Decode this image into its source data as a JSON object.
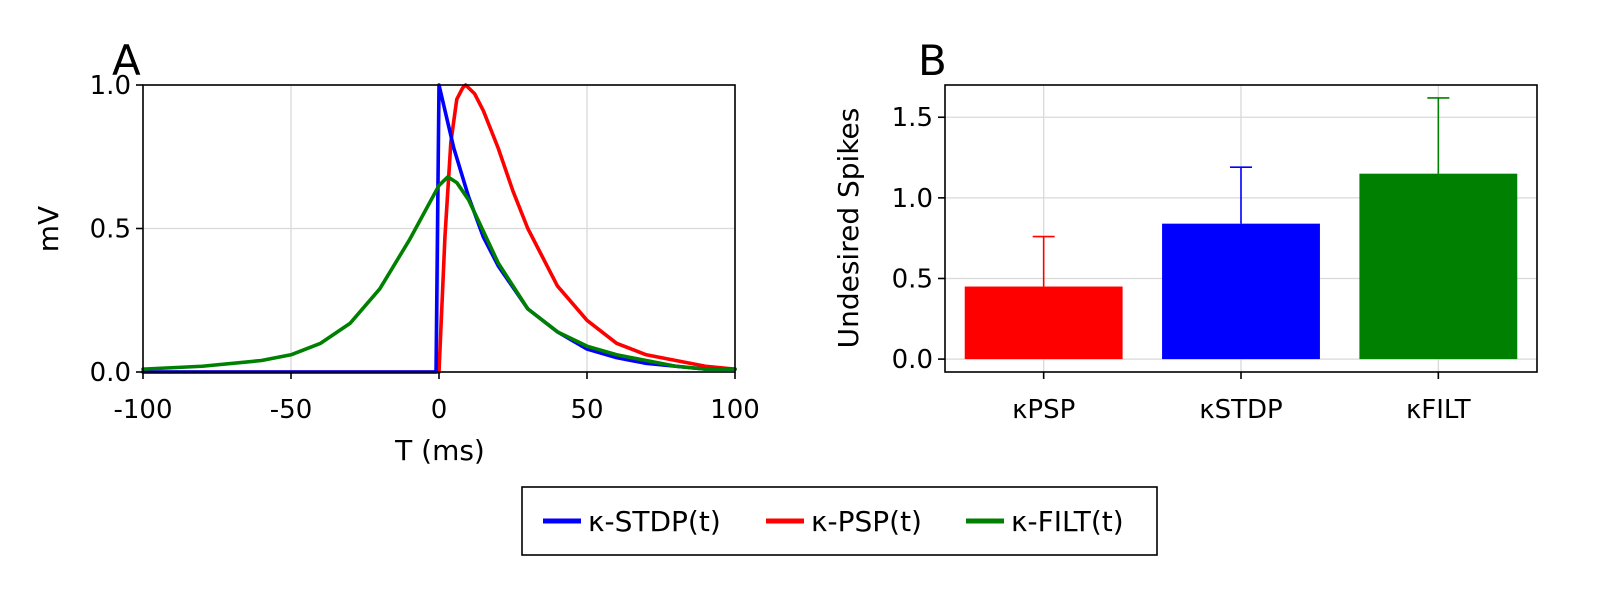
{
  "chart_data": [
    {
      "panel": "A",
      "type": "line",
      "xlabel": "T (ms)",
      "ylabel": "mV",
      "xlim": [
        -100,
        100
      ],
      "ylim": [
        0,
        1
      ],
      "xticks": [
        -100,
        -50,
        0,
        50,
        100
      ],
      "xtick_labels": [
        "-100",
        "-50",
        "0",
        "50",
        "100"
      ],
      "yticks": [
        0,
        0.5,
        1
      ],
      "ytick_labels": [
        "0.0",
        "0.5",
        "1.0"
      ],
      "grid": true,
      "series": [
        {
          "name": "κ-STDP(t)",
          "color": "#0000ff",
          "x": [
            -100,
            -60,
            -20,
            -1,
            0,
            5,
            10,
            15,
            20,
            30,
            40,
            50,
            60,
            70,
            80,
            90,
            100
          ],
          "y": [
            0,
            0,
            0,
            0,
            1.0,
            0.78,
            0.61,
            0.47,
            0.37,
            0.22,
            0.14,
            0.08,
            0.05,
            0.03,
            0.02,
            0.01,
            0.01
          ]
        },
        {
          "name": "κ-PSP(t)",
          "color": "#ff0000",
          "x": [
            -100,
            -60,
            -20,
            0,
            2,
            4,
            6,
            8,
            9,
            12,
            15,
            20,
            25,
            30,
            40,
            50,
            60,
            70,
            80,
            90,
            100
          ],
          "y": [
            0,
            0,
            0,
            0,
            0.47,
            0.8,
            0.95,
            0.99,
            1.0,
            0.97,
            0.91,
            0.78,
            0.63,
            0.5,
            0.3,
            0.18,
            0.1,
            0.06,
            0.04,
            0.02,
            0.01
          ]
        },
        {
          "name": "κ-FILT(t)",
          "color": "#008000",
          "x": [
            -100,
            -80,
            -60,
            -50,
            -40,
            -30,
            -20,
            -10,
            0,
            3,
            6,
            10,
            15,
            20,
            30,
            40,
            50,
            60,
            70,
            80,
            90,
            100
          ],
          "y": [
            0.01,
            0.02,
            0.04,
            0.06,
            0.1,
            0.17,
            0.29,
            0.46,
            0.65,
            0.68,
            0.66,
            0.6,
            0.49,
            0.38,
            0.22,
            0.14,
            0.09,
            0.06,
            0.04,
            0.02,
            0.01,
            0.01
          ]
        }
      ]
    },
    {
      "panel": "B",
      "type": "bar",
      "ylabel": "Undesired Spikes",
      "ylim": [
        -0.08,
        1.7
      ],
      "yticks": [
        0,
        0.5,
        1,
        1.5
      ],
      "ytick_labels": [
        "0.0",
        "0.5",
        "1.0",
        "1.5"
      ],
      "grid": true,
      "categories": [
        "κPSP",
        "κSTDP",
        "κFILT"
      ],
      "values": [
        0.45,
        0.84,
        1.15
      ],
      "errors": [
        0.31,
        0.35,
        0.47
      ],
      "colors": [
        "#ff0000",
        "#0000ff",
        "#008000"
      ]
    }
  ],
  "legend": {
    "position": "bottom-center",
    "entries": [
      {
        "label": "κ-STDP(t)",
        "color": "#0000ff"
      },
      {
        "label": "κ-PSP(t)",
        "color": "#ff0000"
      },
      {
        "label": "κ-FILT(t)",
        "color": "#008000"
      }
    ]
  }
}
